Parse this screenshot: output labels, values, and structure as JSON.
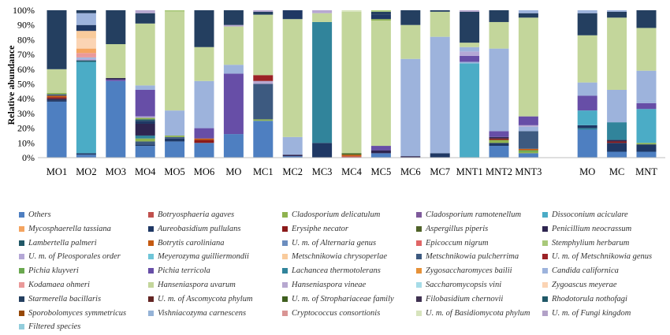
{
  "chart_data": {
    "type": "bar",
    "stacked": true,
    "ylabel": "Relative abundance",
    "yticks": [
      "0%",
      "10%",
      "20%",
      "30%",
      "40%",
      "50%",
      "60%",
      "70%",
      "80%",
      "90%",
      "100%"
    ],
    "ylim": [
      0,
      100
    ],
    "grid": false,
    "legend_position": "bottom",
    "categories": [
      "MO1",
      "MO2",
      "MO3",
      "MO4",
      "MO5",
      "MO6",
      "MO",
      "MC1",
      "MC2",
      "MC3",
      "MC4",
      "MC5",
      "MC6",
      "MC7",
      "MNT1",
      "MNT2",
      "MNT3",
      "",
      "MO",
      "MC",
      "MNT"
    ],
    "species_colors": {
      "Others": "#4e7fc1",
      "Botryosphaeria agaves": "#c0504d",
      "Cladosporium delicatulum": "#8fb34f",
      "Cladosporium ramotenellum": "#7e5a9b",
      "Dissoconium aciculare": "#4bacc6",
      "Mycosphaerella tassiana": "#f4a460",
      "Aureobasidium pullulans": "#1f3864",
      "Erysiphe necator": "#8b1a1a",
      "Aspergillus piperis": "#4f6228",
      "Penicillium neocrassum": "#2e2550",
      "Lambertella palmeri": "#215867",
      "Botrytis caroliniana": "#c55a11",
      "U. m. of Alternaria genus": "#6c8ebf",
      "Epicoccum nigrum": "#e06666",
      "Stemphylium herbarum": "#a9c97a",
      "U. m. of Pleosporales order": "#b4a7d6",
      "Meyerozyma guilliermondii": "#6fc5d8",
      "Metschnikowia chrysoperlae": "#f9cb9c",
      "Metschnikowia pulcherrima": "#3d5a80",
      "U. m. of Metschnikowia genus": "#9b2226",
      "Pichia kluyveri": "#6aa84f",
      "Pichia terricola": "#674ea7",
      "Lachancea thermotolerans": "#31849b",
      "Zygosaccharomyces bailii": "#e69138",
      "Candida californica": "#9db3dc",
      "Kodamaea ohmeri": "#ea9999",
      "Hanseniaspora uvarum": "#c3d69b",
      "Hanseniaspora vineae": "#b7a8d0",
      "Saccharomycopsis vini": "#a6dce8",
      "Zygoascus meyerae": "#fbd4b4",
      "Starmerella bacillaris": "#243f60",
      "U. m. of Ascomycota phylum": "#632523",
      "U. m. of Strophariaceae family": "#3f5f1f",
      "Filobasidium chernovii": "#3f3151",
      "Rhodotorula nothofagi": "#205867",
      "Sporobolomyces symmetricus": "#974806",
      "Vishniacozyma carnescens": "#95b3d7",
      "Cryptococcus consortionis": "#d99594",
      "U. m. of Basidiomycota phylum": "#d7e4bd",
      "U. m. of Fungi kingdom": "#b2a1c7",
      "Filtered species": "#92cddc"
    },
    "stacks": [
      [
        [
          "Others",
          38
        ],
        [
          "Aureobasidium pullulans",
          1
        ],
        [
          "Penicillium neocrassum",
          1
        ],
        [
          "Erysiphe necator",
          1
        ],
        [
          "Botrytis caroliniana",
          1
        ],
        [
          "Metschnikowia pulcherrima",
          1
        ],
        [
          "Cladosporium delicatulum",
          1
        ],
        [
          "Hanseniaspora uvarum",
          16
        ],
        [
          "Starmerella bacillaris",
          40
        ]
      ],
      [
        [
          "Others",
          2
        ],
        [
          "Aureobasidium pullulans",
          1
        ],
        [
          "Dissoconium aciculare",
          62
        ],
        [
          "Lambertella palmeri",
          1
        ],
        [
          "U. m. of Pleosporales order",
          1
        ],
        [
          "Candida californica",
          1
        ],
        [
          "Kodamaea ohmeri",
          3
        ],
        [
          "Mycosphaerella tassiana",
          3
        ],
        [
          "Zygoascus meyerae",
          7
        ],
        [
          "Metschnikowia chrysoperlae",
          5
        ],
        [
          "Aureobasidium pullulans",
          4
        ],
        [
          "Candida californica",
          8
        ],
        [
          "Starmerella bacillaris",
          2
        ]
      ],
      [
        [
          "Others",
          52
        ],
        [
          "Pichia terricola",
          1
        ],
        [
          "Penicillium neocrassum",
          1
        ],
        [
          "Hanseniaspora uvarum",
          23
        ],
        [
          "Starmerella bacillaris",
          23
        ]
      ],
      [
        [
          "Others",
          8
        ],
        [
          "Aureobasidium pullulans",
          1
        ],
        [
          "Metschnikowia pulcherrima",
          2
        ],
        [
          "Cladosporium delicatulum",
          2
        ],
        [
          "Lachancea thermotolerans",
          2
        ],
        [
          "Penicillium neocrassum",
          8
        ],
        [
          "Aureobasidium pullulans",
          2
        ],
        [
          "Lambertella palmeri",
          1
        ],
        [
          "Cladosporium delicatulum",
          1
        ],
        [
          "U. m. of Pleosporales order",
          1
        ],
        [
          "Pichia terricola",
          18
        ],
        [
          "Candida californica",
          3
        ],
        [
          "Hanseniaspora uvarum",
          42
        ],
        [
          "Starmerella bacillaris",
          7
        ],
        [
          "Hanseniaspora vineae",
          2
        ]
      ],
      [
        [
          "Others",
          11
        ],
        [
          "Aureobasidium pullulans",
          2
        ],
        [
          "Metschnikowia pulcherrima",
          1
        ],
        [
          "Cladosporium delicatulum",
          1
        ],
        [
          "Candida californica",
          17
        ],
        [
          "Hanseniaspora uvarum",
          67
        ],
        [
          "Stemphylium herbarum",
          1
        ]
      ],
      [
        [
          "Others",
          10
        ],
        [
          "Erysiphe necator",
          2
        ],
        [
          "Botrytis caroliniana",
          1
        ],
        [
          "Pichia terricola",
          7
        ],
        [
          "Candida californica",
          32
        ],
        [
          "Hanseniaspora uvarum",
          23
        ],
        [
          "Starmerella bacillaris",
          25
        ]
      ],
      [
        [
          "Others",
          16
        ],
        [
          "Pichia terricola",
          41
        ],
        [
          "Candida californica",
          6
        ],
        [
          "Hanseniaspora uvarum",
          26
        ],
        [
          "Hanseniaspora vineae",
          1
        ],
        [
          "Starmerella bacillaris",
          10
        ]
      ],
      [
        [
          "Others",
          25
        ],
        [
          "Cladosporium delicatulum",
          1
        ],
        [
          "Metschnikowia pulcherrima",
          24
        ],
        [
          "Hanseniaspora vineae",
          2
        ],
        [
          "U. m. of Metschnikowia genus",
          4
        ],
        [
          "Hanseniaspora uvarum",
          41
        ],
        [
          "Starmerella bacillaris",
          2
        ],
        [
          "Hanseniaspora vineae",
          1
        ]
      ],
      [
        [
          "Others",
          1
        ],
        [
          "Penicillium neocrassum",
          1
        ],
        [
          "Candida californica",
          12
        ],
        [
          "Hanseniaspora uvarum",
          80
        ],
        [
          "Aureobasidium pullulans",
          6
        ]
      ],
      [
        [
          "Aureobasidium pullulans",
          10
        ],
        [
          "Lachancea thermotolerans",
          82
        ],
        [
          "Hanseniaspora uvarum",
          6
        ],
        [
          "Hanseniaspora vineae",
          2
        ]
      ],
      [
        [
          "Botryosphaeria agaves",
          1
        ],
        [
          "Botrytis caroliniana",
          1
        ],
        [
          "U. m. of Strophariaceae family",
          1
        ],
        [
          "Hanseniaspora uvarum",
          96
        ],
        [
          "U. m. of Basidiomycota phylum",
          1
        ]
      ],
      [
        [
          "Others",
          3
        ],
        [
          "Penicillium neocrassum",
          2
        ],
        [
          "Pichia terricola",
          3
        ],
        [
          "Hanseniaspora uvarum",
          85
        ],
        [
          "Cladosporium delicatulum",
          1
        ],
        [
          "Aureobasidium pullulans",
          3
        ],
        [
          "Starmerella bacillaris",
          2
        ],
        [
          "Stemphylium herbarum",
          1
        ]
      ],
      [
        [
          "Penicillium neocrassum",
          1
        ],
        [
          "Candida californica",
          66
        ],
        [
          "Hanseniaspora uvarum",
          23
        ],
        [
          "Starmerella bacillaris",
          10
        ]
      ],
      [
        [
          "Aureobasidium pullulans",
          3
        ],
        [
          "Candida californica",
          79
        ],
        [
          "Hanseniaspora uvarum",
          17
        ],
        [
          "Starmerella bacillaris",
          1
        ]
      ],
      [
        [
          "Dissoconium aciculare",
          64
        ],
        [
          "Candida californica",
          1
        ],
        [
          "Pichia terricola",
          4
        ],
        [
          "U. m. of Pleosporales order",
          3
        ],
        [
          "Candida californica",
          3
        ],
        [
          "Hanseniaspora uvarum",
          3
        ],
        [
          "Starmerella bacillaris",
          21
        ],
        [
          "Hanseniaspora vineae",
          1
        ]
      ],
      [
        [
          "Others",
          8
        ],
        [
          "Aureobasidium pullulans",
          2
        ],
        [
          "Cladosporium delicatulum",
          2
        ],
        [
          "Erysiphe necator",
          1
        ],
        [
          "Penicillium neocrassum",
          1
        ],
        [
          "Pichia terricola",
          4
        ],
        [
          "Candida californica",
          56
        ],
        [
          "Hanseniaspora uvarum",
          18
        ],
        [
          "Starmerella bacillaris",
          8
        ]
      ],
      [
        [
          "Others",
          3
        ],
        [
          "Cladosporium delicatulum",
          1
        ],
        [
          "Pichia kluyveri",
          1
        ],
        [
          "Botrytis caroliniana",
          1
        ],
        [
          "Metschnikowia pulcherrima",
          12
        ],
        [
          "Candida californica",
          3
        ],
        [
          "Hanseniaspora vineae",
          1
        ],
        [
          "Pichia terricola",
          6
        ],
        [
          "Hanseniaspora uvarum",
          67
        ],
        [
          "Starmerella bacillaris",
          3
        ],
        [
          "Candida californica",
          2
        ]
      ],
      [],
      [
        [
          "Others",
          19
        ],
        [
          "Lachancea thermotolerans",
          1
        ],
        [
          "Aureobasidium pullulans",
          2
        ],
        [
          "Dissoconium aciculare",
          10
        ],
        [
          "Pichia terricola",
          10
        ],
        [
          "Candida californica",
          9
        ],
        [
          "Hanseniaspora uvarum",
          32
        ],
        [
          "Starmerella bacillaris",
          15
        ],
        [
          "Candida californica",
          2
        ]
      ],
      [
        [
          "Others",
          4
        ],
        [
          "Aureobasidium pullulans",
          6
        ],
        [
          "Erysiphe necator",
          1
        ],
        [
          "Penicillium neocrassum",
          1
        ],
        [
          "Lachancea thermotolerans",
          12
        ],
        [
          "Candida californica",
          22
        ],
        [
          "Hanseniaspora uvarum",
          49
        ],
        [
          "Starmerella bacillaris",
          4
        ],
        [
          "Candida californica",
          1
        ]
      ],
      [
        [
          "Others",
          4
        ],
        [
          "Aureobasidium pullulans",
          5
        ],
        [
          "Cladosporium delicatulum",
          1
        ],
        [
          "Dissoconium aciculare",
          23
        ],
        [
          "Pichia terricola",
          4
        ],
        [
          "Candida californica",
          2
        ],
        [
          "Candida californica",
          20
        ],
        [
          "Hanseniaspora uvarum",
          29
        ],
        [
          "Starmerella bacillaris",
          12
        ]
      ]
    ],
    "legend_rows": [
      [
        "Others",
        "Botryosphaeria agaves",
        "Cladosporium delicatulum",
        "Cladosporium ramotenellum",
        "Dissoconium aciculare"
      ],
      [
        "Mycosphaerella tassiana",
        "Aureobasidium pullulans",
        "Erysiphe necator",
        "Aspergillus piperis",
        "Penicillium neocrassum"
      ],
      [
        "Lambertella palmeri",
        "Botrytis caroliniana",
        "U. m. of Alternaria genus",
        "Epicoccum nigrum",
        "Stemphylium herbarum"
      ],
      [
        "U. m. of Pleosporales order",
        "Meyerozyma guilliermondii",
        "Metschnikowia chrysoperlae",
        "Metschnikowia pulcherrima",
        "U. m. of Metschnikowia genus"
      ],
      [
        "Pichia kluyveri",
        "Pichia terricola",
        "Lachancea thermotolerans",
        "Zygosaccharomyces bailii",
        "Candida californica"
      ],
      [
        "Kodamaea ohmeri",
        "Hanseniaspora uvarum",
        "Hanseniaspora vineae",
        "Saccharomycopsis vini",
        "Zygoascus meyerae"
      ],
      [
        "Starmerella bacillaris",
        "U. m. of Ascomycota phylum",
        "U. m. of Strophariaceae family",
        "Filobasidium chernovii",
        "Rhodotorula nothofagi"
      ],
      [
        "Sporobolomyces symmetricus",
        "Vishniacozyma carnescens",
        "Cryptococcus consortionis",
        "U. m. of Basidiomycota phylum",
        "U. m. of Fungi kingdom"
      ],
      [
        "Filtered species"
      ]
    ]
  }
}
